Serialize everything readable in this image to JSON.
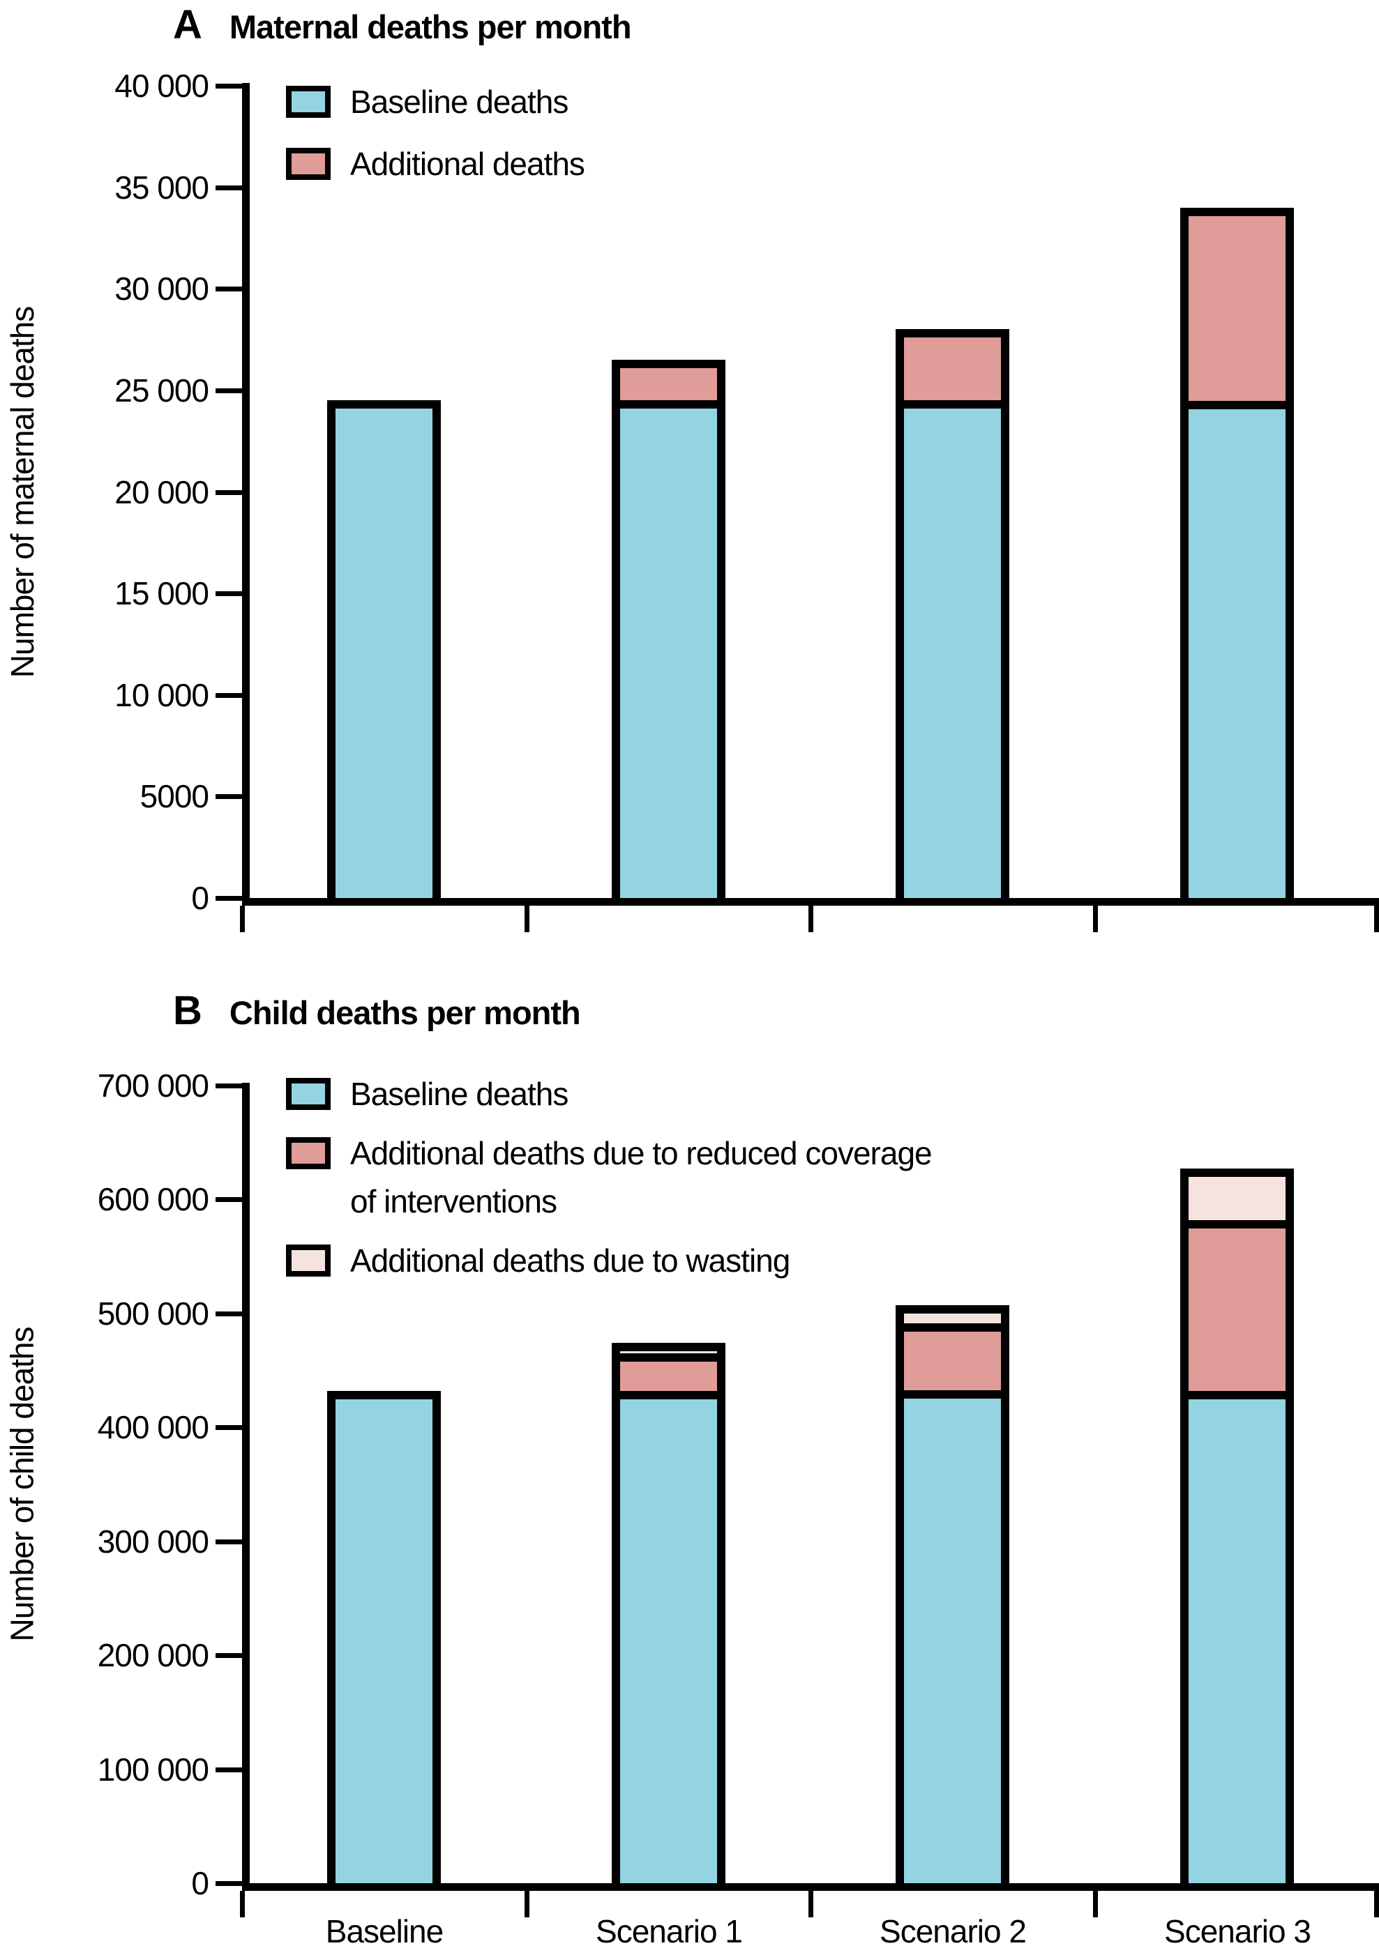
{
  "page": {
    "background": "#FFFFFF"
  },
  "colors": {
    "baseline_blue": "#94D3E2",
    "additional_rose": "#DF9C99",
    "wasting_pale_pink": "#F6E3DF",
    "axis_black": "#000000"
  },
  "chart_data": [
    {
      "type": "bar",
      "stacked": true,
      "panel_letter": "A",
      "title": "Maternal deaths per month",
      "ylabel": "Number of maternal deaths",
      "xlabel": "",
      "categories": [
        "Baseline",
        "Scenario 1",
        "Scenario 2",
        "Scenario 3"
      ],
      "series": [
        {
          "name": "Baseline deaths",
          "key": "baseline",
          "color": "#94D3E2",
          "values": [
            24500,
            24500,
            24500,
            24500
          ]
        },
        {
          "name": "Additional deaths",
          "key": "additional",
          "color": "#DF9C99",
          "values": [
            0,
            2000,
            3500,
            9500
          ]
        }
      ],
      "totals": [
        24500,
        26500,
        28000,
        34000
      ],
      "ylim": [
        0,
        40000
      ],
      "ytick_step": 5000,
      "ytick_labels": [
        "0",
        "5000",
        "10 000",
        "15 000",
        "20 000",
        "25 000",
        "30 000",
        "35 000",
        "40 000"
      ],
      "legend": [
        "Baseline deaths",
        "Additional deaths"
      ],
      "legend_position": "top-left",
      "grid": false,
      "show_x_tick_labels": false
    },
    {
      "type": "bar",
      "stacked": true,
      "panel_letter": "B",
      "title": "Child deaths per month",
      "ylabel": "Number of child deaths",
      "xlabel": "",
      "categories": [
        "Baseline",
        "Scenario 1",
        "Scenario 2",
        "Scenario 3"
      ],
      "series": [
        {
          "name": "Baseline deaths",
          "key": "baseline",
          "color": "#94D3E2",
          "values": [
            432000,
            432000,
            432000,
            432000
          ]
        },
        {
          "name": "Additional deaths due to reduced coverage of interventions",
          "key": "reduced_coverage",
          "color": "#DF9C99",
          "values": [
            0,
            33000,
            59000,
            150000
          ]
        },
        {
          "name": "Additional deaths due to wasting",
          "key": "wasting",
          "color": "#F6E3DF",
          "values": [
            0,
            9000,
            16000,
            45000
          ]
        }
      ],
      "totals": [
        432000,
        474000,
        507000,
        627000
      ],
      "ylim": [
        0,
        700000
      ],
      "ytick_step": 100000,
      "ytick_labels": [
        "0",
        "100 000",
        "200 000",
        "300 000",
        "400 000",
        "500 000",
        "600 000",
        "700 000"
      ],
      "legend": [
        "Baseline deaths",
        "Additional deaths due to reduced coverage\nof interventions",
        "Additional deaths due to wasting"
      ],
      "legend_position": "top-left",
      "grid": false,
      "show_x_tick_labels": true
    }
  ]
}
